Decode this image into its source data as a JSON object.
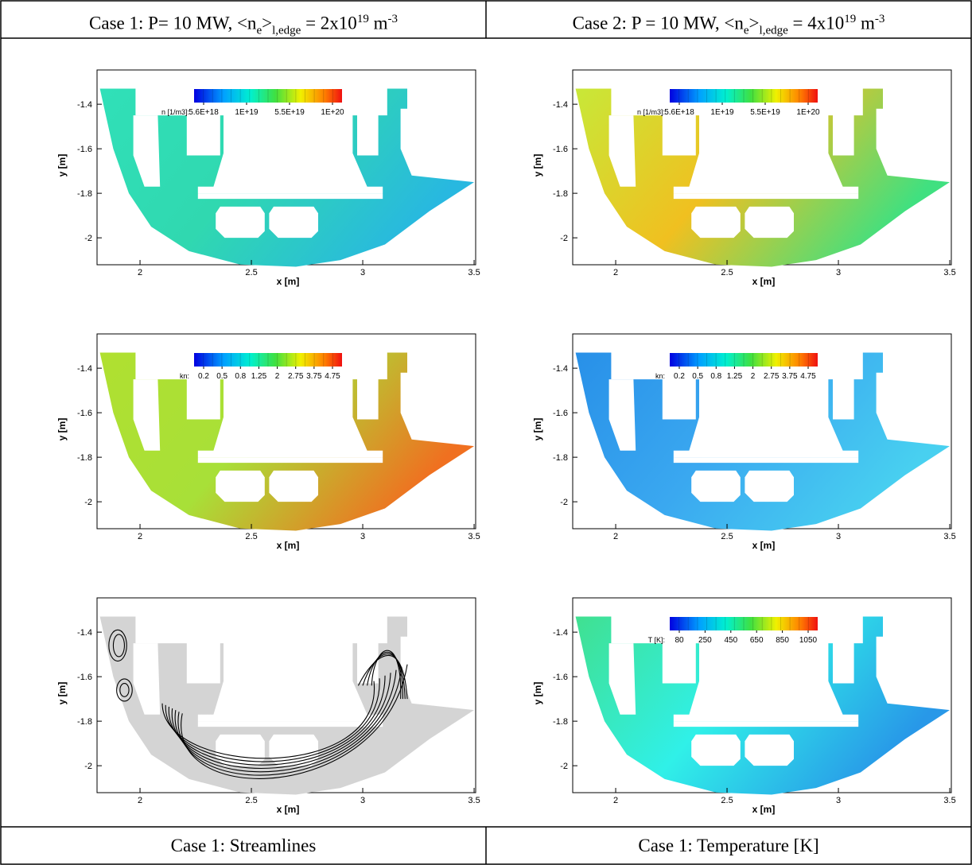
{
  "header": {
    "cells": [
      [
        {
          "t": "Case 1: P= 10 MW, <n"
        },
        {
          "sub": "e"
        },
        {
          "t": ">"
        },
        {
          "sub": "l,edge"
        },
        {
          "t": " = 2x10"
        },
        {
          "sup": "19"
        },
        {
          "t": " m"
        },
        {
          "sup": "-3"
        }
      ],
      [
        {
          "t": "Case 2: P = 10 MW, <n"
        },
        {
          "sub": "e"
        },
        {
          "t": ">"
        },
        {
          "sub": "l,edge"
        },
        {
          "t": " = 4x10"
        },
        {
          "sup": "19"
        },
        {
          "t": " m"
        },
        {
          "sup": "-3"
        }
      ]
    ]
  },
  "footer": {
    "cells": [
      "Case 1: Streamlines",
      "Case 1: Temperature [K]"
    ]
  },
  "panels": [
    {
      "type": "contour",
      "x_label": "x [m]",
      "y_label": "y [m]",
      "xlim": [
        1.807,
        3.507
      ],
      "ylim": [
        -2.121,
        -1.246
      ],
      "xticks": [
        2,
        2.5,
        3,
        3.5
      ],
      "yticks": [
        -1.4,
        -1.6,
        -1.8,
        -2
      ],
      "fill": [
        "#30e0b8",
        "#30d8b0",
        "#28b8e0"
      ],
      "colorbar": {
        "label": "n [1/m3]:",
        "ticks": [
          {
            "value": 5.6e+18,
            "label": "5.6E+18"
          },
          {
            "value": 1e+19,
            "label": "1E+19"
          },
          {
            "value": 5.5e+19,
            "label": "5.5E+19"
          },
          {
            "value": 1e+20,
            "label": "1E+20"
          }
        ]
      }
    },
    {
      "type": "contour",
      "x_label": "x [m]",
      "y_label": "y [m]",
      "xlim": [
        1.807,
        3.507
      ],
      "ylim": [
        -2.121,
        -1.246
      ],
      "xticks": [
        2,
        2.5,
        3,
        3.5
      ],
      "yticks": [
        -1.4,
        -1.6,
        -1.8,
        -2
      ],
      "fill": [
        "#c8e838",
        "#f0c020",
        "#40e080"
      ],
      "colorbar": {
        "label": "n [1/m3]:",
        "ticks": [
          {
            "value": 5.6e+18,
            "label": "5.6E+18"
          },
          {
            "value": 1e+19,
            "label": "1E+19"
          },
          {
            "value": 5.5e+19,
            "label": "5.5E+19"
          },
          {
            "value": 1e+20,
            "label": "1E+20"
          }
        ]
      }
    },
    {
      "type": "contour",
      "x_label": "x [m]",
      "y_label": "y [m]",
      "xlim": [
        1.807,
        3.507
      ],
      "ylim": [
        -2.121,
        -1.246
      ],
      "xticks": [
        2,
        2.5,
        3,
        3.5
      ],
      "yticks": [
        -1.4,
        -1.6,
        -1.8,
        -2
      ],
      "fill": [
        "#b0e030",
        "#a8e038",
        "#f07020"
      ],
      "colorbar": {
        "label": "kn:",
        "ticks": [
          0.2,
          0.5,
          0.8,
          1.25,
          2,
          2.75,
          3.75,
          4.75
        ]
      }
    },
    {
      "type": "contour",
      "x_label": "x [m]",
      "y_label": "y [m]",
      "xlim": [
        1.807,
        3.507
      ],
      "ylim": [
        -2.121,
        -1.246
      ],
      "xticks": [
        2,
        2.5,
        3,
        3.5
      ],
      "yticks": [
        -1.4,
        -1.6,
        -1.8,
        -2
      ],
      "fill": [
        "#2890e8",
        "#3aa8f0",
        "#48d0f0"
      ],
      "colorbar": {
        "label": "kn:",
        "ticks": [
          0.2,
          0.5,
          0.8,
          1.25,
          2,
          2.75,
          3.75,
          4.75
        ]
      }
    },
    {
      "type": "streamlines",
      "x_label": "x [m]",
      "y_label": "y [m]",
      "xlim": [
        1.807,
        3.507
      ],
      "ylim": [
        -2.121,
        -1.246
      ],
      "xticks": [
        2,
        2.5,
        3,
        3.5
      ],
      "yticks": [
        -1.4,
        -1.6,
        -1.8,
        -2
      ],
      "fill": [
        "#d4d4d4",
        "#d4d4d4",
        "#d4d4d4"
      ]
    },
    {
      "type": "contour",
      "x_label": "x [m]",
      "y_label": "y [m]",
      "xlim": [
        1.807,
        3.507
      ],
      "ylim": [
        -2.121,
        -1.246
      ],
      "xticks": [
        2,
        2.5,
        3,
        3.5
      ],
      "yticks": [
        -1.4,
        -1.6,
        -1.8,
        -2
      ],
      "fill": [
        "#40e090",
        "#30f0e8",
        "#2898e8"
      ],
      "colorbar": {
        "label": "T [K]:",
        "ticks": [
          80,
          250,
          450,
          650,
          850,
          1050
        ]
      }
    }
  ]
}
